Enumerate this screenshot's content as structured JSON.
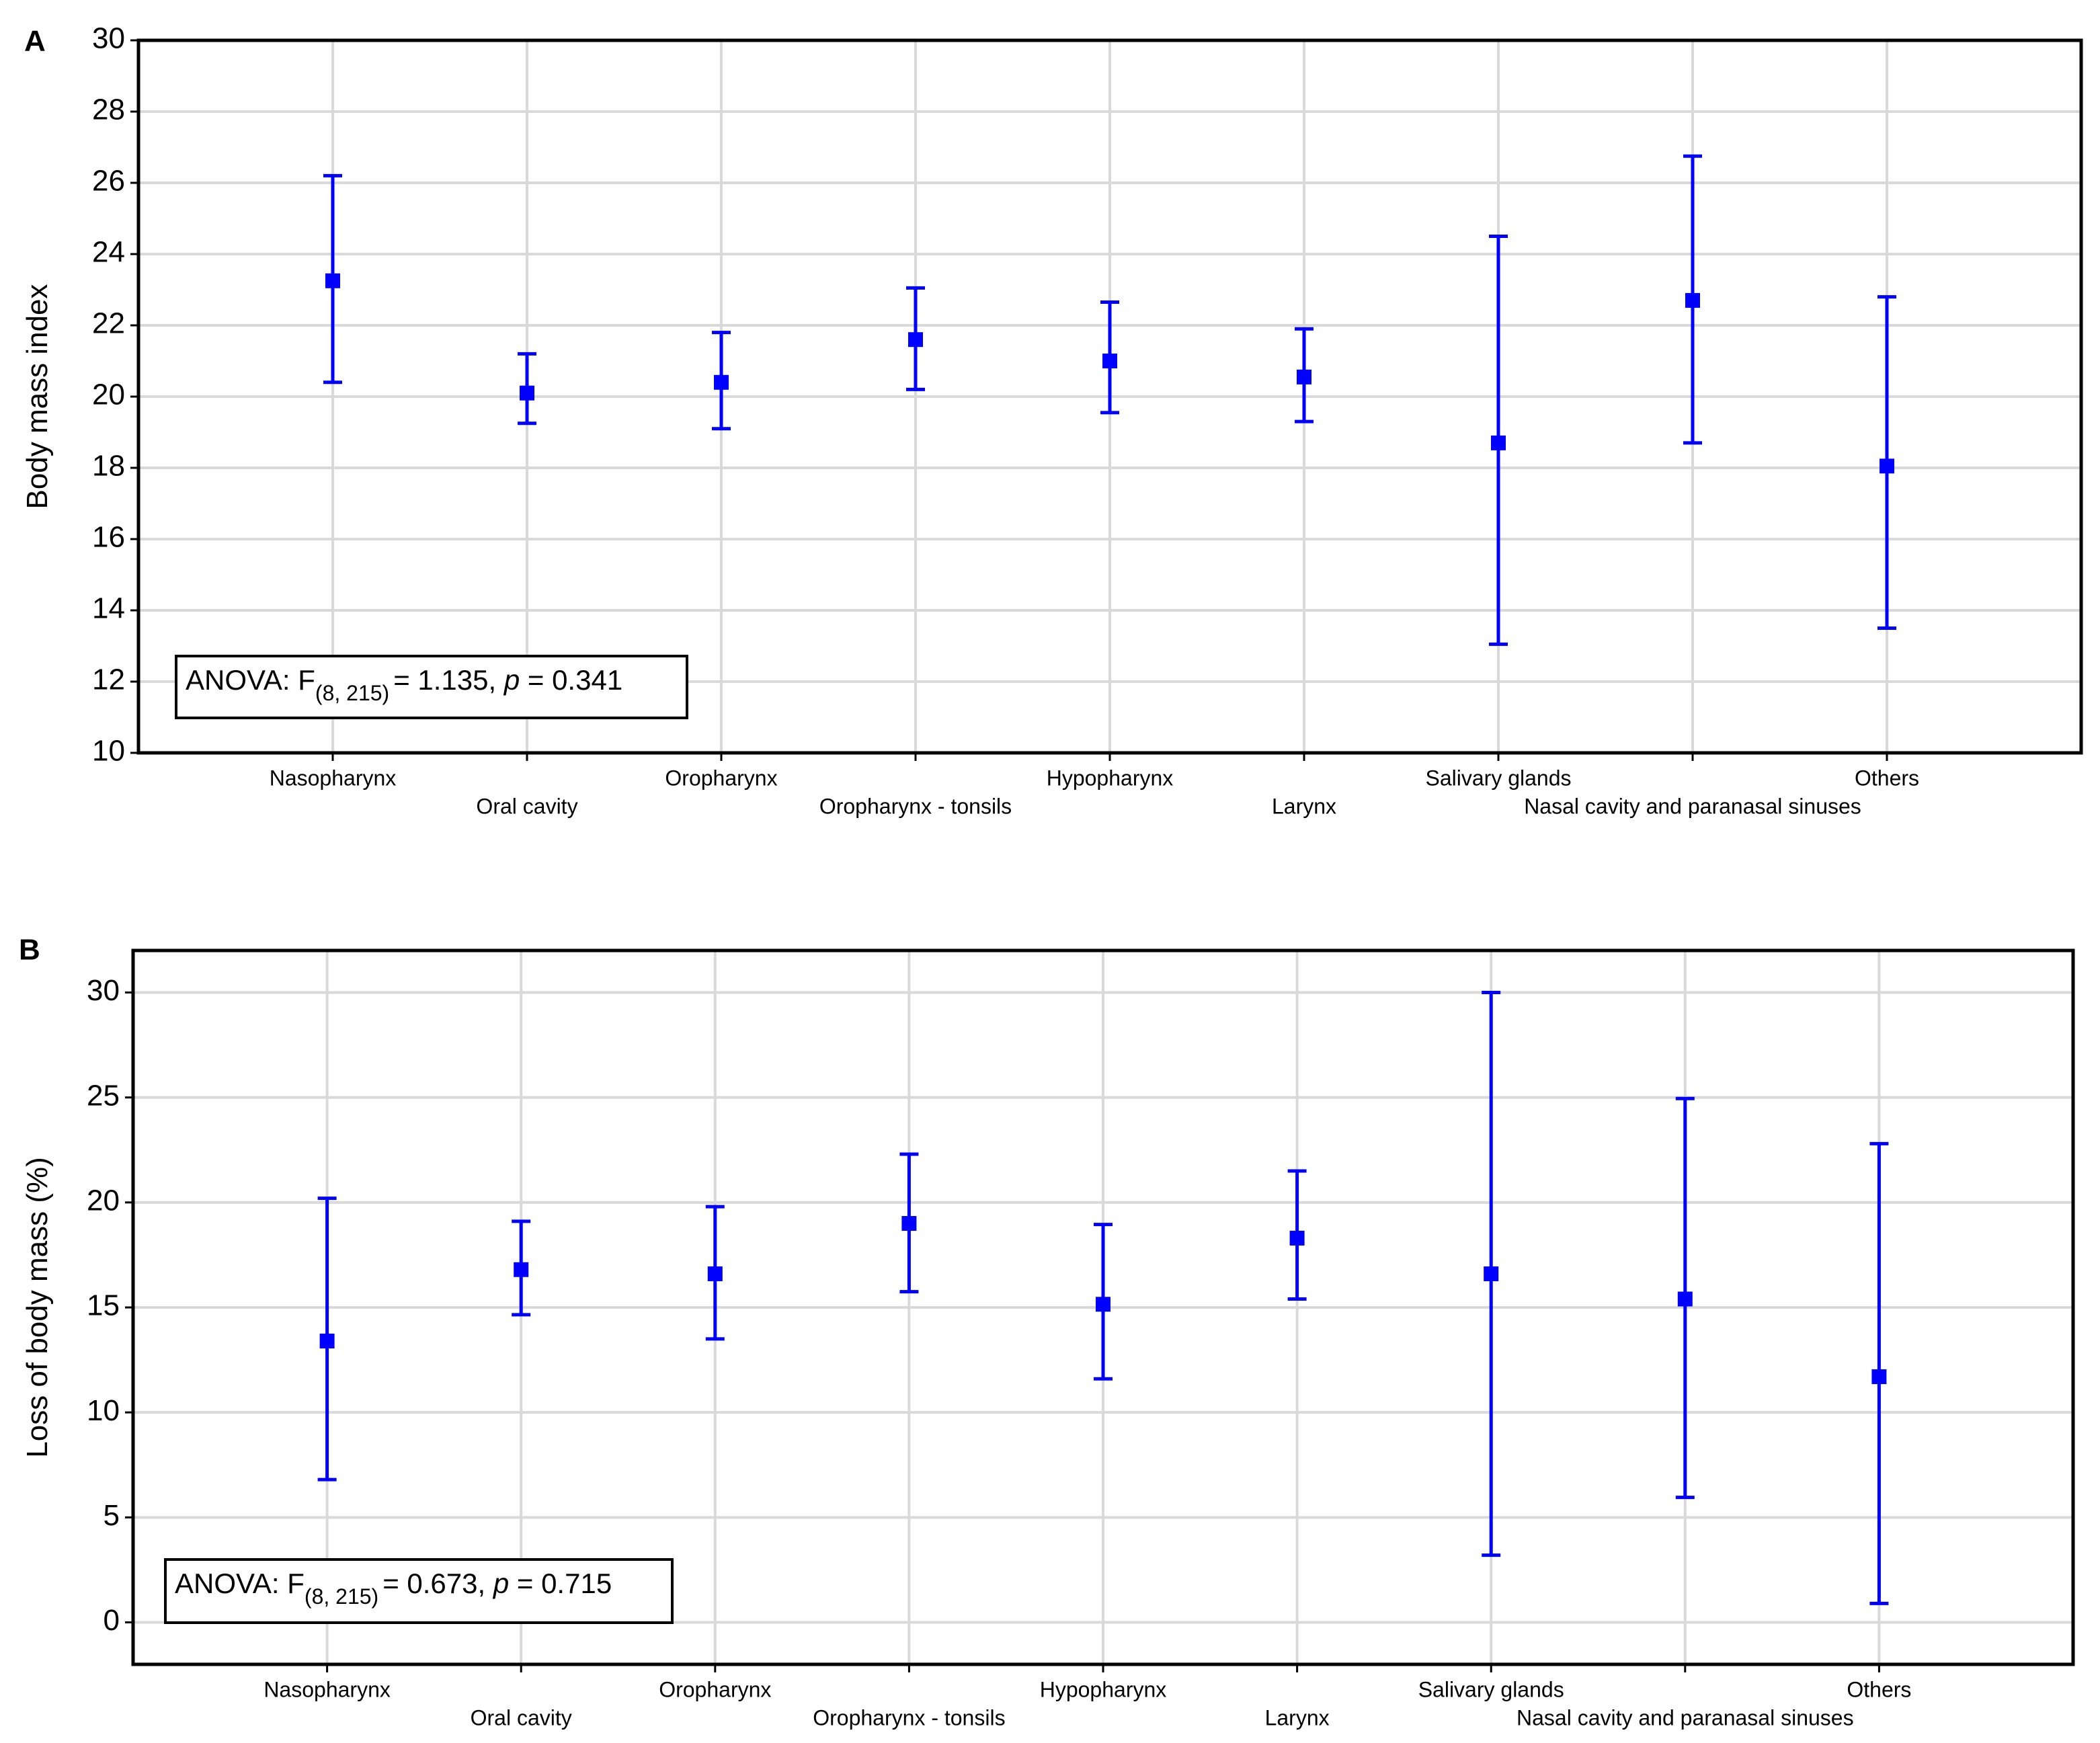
{
  "chart_data": [
    {
      "type": "errorbar",
      "panel": "A",
      "y_label": "Body mass index",
      "annotation": {
        "prefix": "ANOVA: F",
        "subscript": "(8, 215)",
        "middle": "= 1.135, ",
        "p": "p",
        "suffix": " = 0.341"
      },
      "categories": [
        "Nasopharynx",
        "Oral cavity",
        "Oropharynx",
        "Oropharynx - tonsils",
        "Hypopharynx",
        "Larynx",
        "Salivary glands",
        "Nasal cavity and paranasal sinuses",
        "Others"
      ],
      "values": [
        23.25,
        20.1,
        20.4,
        21.6,
        21.0,
        20.55,
        18.7,
        22.7,
        18.05
      ],
      "lower": [
        20.4,
        19.25,
        19.1,
        20.2,
        19.55,
        19.3,
        13.05,
        18.7,
        13.5
      ],
      "upper": [
        26.2,
        21.2,
        21.8,
        23.05,
        22.65,
        21.9,
        24.5,
        26.75,
        22.8
      ],
      "color": "#0000ff",
      "ylim": [
        10,
        30
      ],
      "yticks": [
        10,
        12,
        14,
        16,
        18,
        20,
        22,
        24,
        26,
        28,
        30
      ],
      "grid": true
    },
    {
      "type": "errorbar",
      "panel": "B",
      "y_label": "Loss of body mass (%)",
      "annotation": {
        "prefix": "ANOVA: F",
        "subscript": "(8, 215)",
        "middle": "= 0.673, ",
        "p": "p",
        "suffix": " = 0.715"
      },
      "categories": [
        "Nasopharynx",
        "Oral cavity",
        "Oropharynx",
        "Oropharynx - tonsils",
        "Hypopharynx",
        "Larynx",
        "Salivary glands",
        "Nasal cavity and paranasal sinuses",
        "Others"
      ],
      "values": [
        13.4,
        16.8,
        16.6,
        19.0,
        15.15,
        18.3,
        16.6,
        15.4,
        11.7
      ],
      "lower": [
        6.8,
        14.65,
        13.5,
        15.75,
        11.6,
        15.4,
        3.2,
        5.95,
        0.9
      ],
      "upper": [
        20.2,
        19.1,
        19.8,
        22.3,
        18.95,
        21.5,
        30.0,
        24.95,
        22.8
      ],
      "color": "#0000ff",
      "ylim": [
        -2,
        32
      ],
      "yticks": [
        0,
        5,
        10,
        15,
        20,
        25,
        30
      ],
      "grid": true
    }
  ]
}
